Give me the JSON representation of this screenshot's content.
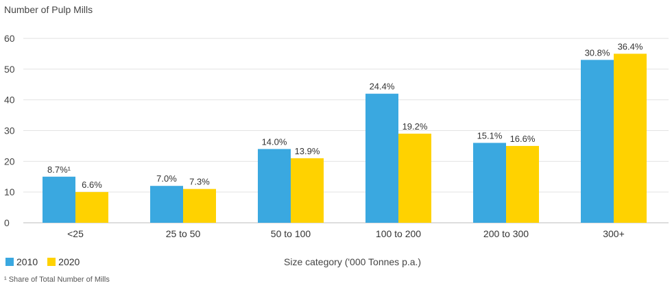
{
  "chart_data": {
    "type": "bar",
    "ylabel": "Number of Pulp Mills",
    "xlabel": "Size category ('000 Tonnes p.a.)",
    "ylim": [
      0,
      60
    ],
    "yticks": [
      0,
      10,
      20,
      30,
      40,
      50,
      60
    ],
    "grid": true,
    "legend_position": "bottom-left",
    "categories": [
      "<25",
      "25 to 50",
      "50 to 100",
      "100 to 200",
      "200 to 300",
      "300+"
    ],
    "series": [
      {
        "name": "2010",
        "color": "#3aa8e0",
        "values": [
          15,
          12,
          24,
          42,
          26,
          53
        ],
        "labels": [
          "8.7%¹",
          "7.0%",
          "14.0%",
          "24.4%",
          "15.1%",
          "30.8%"
        ]
      },
      {
        "name": "2020",
        "color": "#ffd200",
        "values": [
          10,
          11,
          21,
          29,
          25,
          55
        ],
        "labels": [
          "6.6%",
          "7.3%",
          "13.9%",
          "19.2%",
          "16.6%",
          "36.4%"
        ]
      }
    ],
    "footnote": "¹ Share of Total Number of Mills"
  }
}
